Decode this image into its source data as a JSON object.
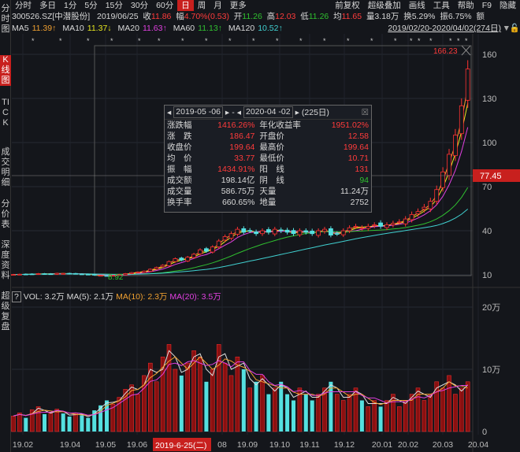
{
  "menu": {
    "left": [
      "分时",
      "多日",
      "1分",
      "5分",
      "15分",
      "30分",
      "60分",
      "日",
      "周",
      "月",
      "更多"
    ],
    "active": "日",
    "right": [
      "前复权",
      "超级叠加",
      "画线",
      "工具",
      "帮助",
      "F9",
      "隐藏"
    ]
  },
  "sidebar": {
    "items": [
      "分时图",
      "K线图",
      "TICK",
      "成交明细",
      "分价表",
      "深度资料",
      "超级复盘"
    ],
    "active": "K线图"
  },
  "info": {
    "code": "300526.SZ[中潜股份]",
    "date": "2019/06/25",
    "close_l": "收",
    "close": "11.86",
    "chg_l": "幅",
    "chg": "4.70%(0.53)",
    "open_l": "开",
    "open": "11.26",
    "high_l": "高",
    "high": "12.03",
    "low_l": "低",
    "low": "11.26",
    "avg_l": "均",
    "avg": "11.65",
    "vol": "量3.18万",
    "turn": "换5.29%",
    "amp": "振6.75%",
    "amt": "额"
  },
  "ma": {
    "items": [
      {
        "label": "MA5",
        "value": "11.39↑",
        "color": "#f0a030"
      },
      {
        "label": "MA10",
        "value": "11.37↓",
        "color": "#e8e820"
      },
      {
        "label": "MA20",
        "value": "11.63↑",
        "color": "#e040e0"
      },
      {
        "label": "MA60",
        "value": "11.13↑",
        "color": "#30c030"
      },
      {
        "label": "MA120",
        "value": "10.52↑",
        "color": "#40d0d0"
      }
    ],
    "range": "2019/02/20-2020/04/02(274日)"
  },
  "popup": {
    "start": "2019-05 -06",
    "sep": "-",
    "end": "2020-04 -02",
    "days": "(225日)",
    "rows": [
      [
        "涨跌幅",
        "1416.26%",
        "年化收益率",
        "1951.02%"
      ],
      [
        "涨　跌",
        "186.47",
        "开盘价",
        "12.58"
      ],
      [
        "收盘价",
        "199.64",
        "最高价",
        "199.64"
      ],
      [
        "均　价",
        "33.77",
        "最低价",
        "10.71"
      ],
      [
        "振　幅",
        "1434.91%",
        "阳　线",
        "131"
      ],
      [
        "成交额",
        "198.14亿",
        "阴　线",
        "94"
      ],
      [
        "成交量",
        "586.75万",
        "天量",
        "11.24万"
      ],
      [
        "换手率",
        "660.65%",
        "地量",
        "2752"
      ]
    ]
  },
  "vol_header": {
    "vol": "VOL: 3.2万",
    "ma5": "MA(5): 2.1万",
    "ma10": "MA(10): 2.3万",
    "ma20": "MA(20): 3.5万"
  },
  "colors": {
    "up": "#ff3232",
    "down": "#54e0e0",
    "accent": "#c8201e"
  },
  "chart_data": {
    "type": "candlestick",
    "price_axis": {
      "ticks": [
        10,
        40,
        70,
        100,
        130,
        160
      ],
      "ylim": [
        10,
        166.23
      ]
    },
    "annotations": {
      "max_label": "166.23",
      "min_label": "8.92",
      "crosshair_price": "77.45",
      "crosshair_date": "2019-6-25(二)"
    },
    "x_ticks": [
      "19.02",
      "19.04",
      "19.05",
      "19.06",
      "08",
      "19.09",
      "19.10",
      "19.11",
      "19.12",
      "20.01",
      "20.02",
      "20.03",
      "20.04"
    ],
    "vol_axis": {
      "ticks": [
        "20万",
        "10万",
        "0"
      ],
      "ylim": [
        0,
        20
      ]
    },
    "close": [
      10.2,
      10.4,
      10.3,
      10.6,
      10.8,
      10.5,
      10.7,
      11,
      10.9,
      10.6,
      10.8,
      10.4,
      10.2,
      9.8,
      9.6,
      9.3,
      9.6,
      10.2,
      10.8,
      11.5,
      11.9,
      12.5,
      13.8,
      15,
      16.5,
      19,
      21,
      20,
      22,
      24,
      27,
      26,
      29,
      33,
      36,
      38,
      41,
      39,
      40,
      38,
      40,
      39,
      41,
      40,
      39,
      38,
      40,
      39,
      38,
      40,
      41,
      37,
      38,
      40,
      42,
      43,
      42,
      43,
      44,
      43,
      44,
      45,
      46,
      48,
      51,
      53,
      56,
      60,
      68,
      80,
      92,
      105,
      125,
      150
    ],
    "volume": [
      2.5,
      3,
      2.2,
      3.5,
      4,
      2.8,
      3.1,
      3.6,
      2.9,
      2.4,
      3,
      2.6,
      2.2,
      3.4,
      4.2,
      5,
      4.4,
      5.5,
      6.8,
      7.5,
      6,
      9,
      11,
      8,
      12,
      14,
      10,
      9,
      11,
      13,
      12,
      8,
      10,
      14,
      11,
      9,
      12,
      10,
      7,
      8,
      9,
      6,
      7,
      8,
      6,
      5,
      7,
      6,
      5,
      6,
      7,
      8,
      6,
      5,
      6,
      7,
      5,
      4,
      5,
      4,
      5,
      6,
      4,
      5,
      6,
      7,
      5,
      6,
      8,
      7,
      9,
      6,
      7,
      8
    ]
  }
}
